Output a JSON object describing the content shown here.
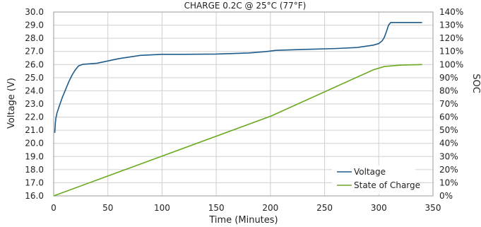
{
  "chart_data": {
    "type": "line",
    "title": "CHARGE 0.2C @ 25°C (77°F)",
    "xlabel": "Time (Minutes)",
    "ylabel": "Voltage (V)",
    "y2label": "SOC",
    "xlim": [
      0,
      350
    ],
    "ylim": [
      16.0,
      30.0
    ],
    "y2lim": [
      0,
      140
    ],
    "x_ticks": [
      "0",
      "50",
      "100",
      "150",
      "200",
      "250",
      "300",
      "350"
    ],
    "y_ticks": [
      "16.0",
      "17.0",
      "18.0",
      "19.0",
      "20.0",
      "21.0",
      "22.0",
      "23.0",
      "24.0",
      "25.0",
      "26.0",
      "27.0",
      "28.0",
      "29.0",
      "30.0"
    ],
    "y2_ticks": [
      "0%",
      "10%",
      "20%",
      "30%",
      "40%",
      "50%",
      "60%",
      "70%",
      "80%",
      "90%",
      "100%",
      "110%",
      "120%",
      "130%",
      "140%"
    ],
    "grid": true,
    "legend_position": "bottom-right",
    "series": [
      {
        "name": "Voltage",
        "axis": "left",
        "color": "#1f5c8b",
        "points": [
          [
            1,
            20.8
          ],
          [
            1.5,
            21.5
          ],
          [
            2,
            21.9
          ],
          [
            3,
            22.3
          ],
          [
            5,
            22.8
          ],
          [
            8,
            23.5
          ],
          [
            11,
            24.1
          ],
          [
            14,
            24.7
          ],
          [
            17,
            25.2
          ],
          [
            20,
            25.6
          ],
          [
            23,
            25.9
          ],
          [
            27,
            26.02
          ],
          [
            40,
            26.1
          ],
          [
            60,
            26.45
          ],
          [
            80,
            26.7
          ],
          [
            100,
            26.78
          ],
          [
            120,
            26.78
          ],
          [
            150,
            26.8
          ],
          [
            180,
            26.88
          ],
          [
            195,
            26.98
          ],
          [
            205,
            27.08
          ],
          [
            230,
            27.15
          ],
          [
            260,
            27.22
          ],
          [
            280,
            27.3
          ],
          [
            295,
            27.48
          ],
          [
            300,
            27.6
          ],
          [
            303,
            27.8
          ],
          [
            305,
            28.05
          ],
          [
            307,
            28.5
          ],
          [
            309,
            29.0
          ],
          [
            311,
            29.2
          ],
          [
            325,
            29.2
          ],
          [
            340,
            29.2
          ]
        ]
      },
      {
        "name": "State of Charge",
        "axis": "right",
        "color": "#6aaa1e",
        "points": [
          [
            0,
            0
          ],
          [
            100,
            30.3
          ],
          [
            200,
            60.6
          ],
          [
            295,
            96
          ],
          [
            305,
            98.5
          ],
          [
            320,
            99.6
          ],
          [
            340,
            100
          ]
        ]
      }
    ]
  }
}
